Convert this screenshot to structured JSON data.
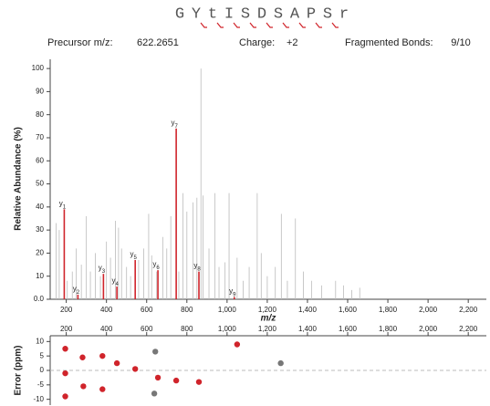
{
  "header": {
    "sequence": [
      "G",
      "Y",
      "t",
      "I",
      "S",
      "D",
      "S",
      "A",
      "P",
      "S",
      "r"
    ],
    "precursor_label": "Precursor m/z:",
    "precursor": "622.2651",
    "charge_label": "Charge:",
    "charge": "+2",
    "bonds_label": "Fragmented Bonds:",
    "bonds": "9/10"
  },
  "chart_data": [
    {
      "type": "spectrum",
      "x_label": "m/z",
      "y_label": "Relative Abundance (%)",
      "xlim": [
        120,
        2290
      ],
      "ylim": [
        0,
        104
      ],
      "xticks": [
        200,
        400,
        600,
        800,
        {
          "value": 1000,
          "label": "1,000"
        },
        {
          "value": 1200,
          "label": "1,200"
        },
        {
          "value": 1400,
          "label": "1,400"
        },
        {
          "value": 1600,
          "label": "1,600"
        },
        {
          "value": 1800,
          "label": "1,800"
        },
        {
          "value": 2000,
          "label": "2,000"
        },
        {
          "value": 2200,
          "label": "2,200"
        }
      ],
      "yticks": [
        {
          "value": 0,
          "label": "0.0"
        },
        10,
        20,
        30,
        40,
        50,
        60,
        70,
        80,
        90,
        100
      ],
      "series": [
        {
          "color": "#bbbbbb",
          "x": [
            150,
            165,
            205,
            230,
            250,
            275,
            300,
            320,
            345,
            370,
            400,
            420,
            445,
            460,
            475,
            500,
            520,
            560,
            585,
            610,
            625,
            650,
            680,
            700,
            720,
            760,
            780,
            800,
            830,
            850,
            870,
            880,
            910,
            940,
            960,
            990,
            1010,
            1050,
            1080,
            1110,
            1150,
            1170,
            1200,
            1240,
            1270,
            1300,
            1340,
            1380,
            1420,
            1470,
            1540,
            1580,
            1620,
            1660
          ],
          "values": [
            33,
            30,
            8,
            12,
            22,
            15,
            36,
            12,
            20,
            10,
            25,
            18,
            34,
            31,
            22,
            14,
            10,
            17,
            22,
            37,
            19,
            12,
            27,
            22,
            36,
            12,
            46,
            38,
            42,
            44,
            100,
            45,
            22,
            46,
            14,
            16,
            46,
            18,
            8,
            14,
            46,
            20,
            10,
            14,
            37,
            8,
            35,
            12,
            8,
            6,
            8,
            6,
            4,
            5
          ]
        },
        {
          "color": "#d0242b",
          "x": [
            190,
            258,
            385,
            452,
            543,
            656,
            747,
            860,
            1036
          ],
          "values": [
            39,
            2,
            11,
            5.5,
            17,
            12.6,
            74,
            12,
            1
          ],
          "annotations": [
            {
              "ion": "y",
              "sub": "1"
            },
            {
              "ion": "y",
              "sub": "2"
            },
            {
              "ion": "y",
              "sub": "3"
            },
            {
              "ion": "y",
              "sub": "4"
            },
            {
              "ion": "y",
              "sub": "5"
            },
            {
              "ion": "y",
              "sub": "6"
            },
            {
              "ion": "y",
              "sub": "7"
            },
            {
              "ion": "y",
              "sub": "8"
            },
            {
              "ion": "y",
              "sub": "9"
            }
          ]
        }
      ]
    },
    {
      "type": "scatter",
      "y_label": "Error (ppm)",
      "xlim": [
        120,
        2290
      ],
      "ylim": [
        -12,
        12
      ],
      "zero_line": true,
      "xticks": [
        200,
        400,
        600,
        800,
        {
          "value": 1000,
          "label": "1,000"
        },
        {
          "value": 1200,
          "label": "1,200"
        },
        {
          "value": 1400,
          "label": "1,400"
        },
        {
          "value": 1600,
          "label": "1,600"
        },
        {
          "value": 1800,
          "label": "1,800"
        },
        {
          "value": 2000,
          "label": "2,000"
        },
        {
          "value": 2200,
          "label": "2,200"
        }
      ],
      "yticks": [
        -10,
        -5,
        0,
        5,
        10
      ],
      "series": [
        {
          "color": "#d0242b",
          "x": [
            195,
            195,
            195,
            281,
            285,
            380,
            380,
            452,
            543,
            656,
            747,
            860,
            1050
          ],
          "values": [
            7.5,
            -1,
            -9,
            4.5,
            -5.5,
            5,
            -6.5,
            2.5,
            0.5,
            -2.5,
            -3.5,
            -4,
            9
          ]
        },
        {
          "color": "#777777",
          "x": [
            643,
            638,
            1267
          ],
          "values": [
            6.5,
            -8,
            2.5
          ]
        }
      ]
    }
  ]
}
